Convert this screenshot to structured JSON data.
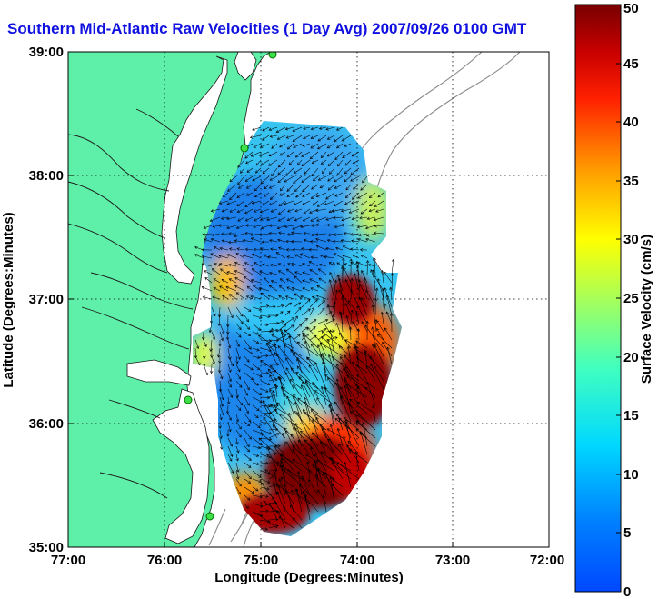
{
  "title": "Southern Mid-Atlantic Raw Velocities (1 Day Avg) 2007/09/26 0100 GMT",
  "map": {
    "x_axis_label": "Longitude (Degrees:Minutes)",
    "y_axis_label": "Latitude (Degrees:Minutes)",
    "x_ticks": [
      "77:00",
      "76:00",
      "75:00",
      "74:00",
      "73:00",
      "72:00"
    ],
    "y_ticks": [
      "39:00",
      "38:00",
      "37:00",
      "36:00",
      "35:00"
    ],
    "lon_range": [
      -77,
      -72
    ],
    "lat_range": [
      35,
      39
    ],
    "grid": "dotted",
    "land_color": "#5ef0a8",
    "shoreline_stations": 4
  },
  "colorbar": {
    "label": "Surface Velocity (cm/s)",
    "ticks": [
      "0",
      "5",
      "10",
      "15",
      "20",
      "25",
      "30",
      "35",
      "40",
      "45",
      "50"
    ],
    "range": [
      0,
      50
    ],
    "colormap": "jet"
  }
}
